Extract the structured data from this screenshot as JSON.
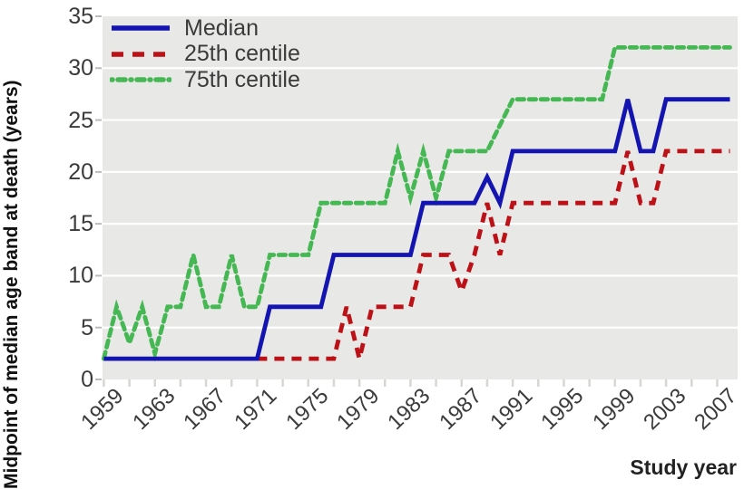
{
  "axes": {
    "y_title": "Midpoint of median age band at death (years)",
    "x_title": "Study year"
  },
  "legend": [
    {
      "label": "Median",
      "color": "#1414b0",
      "style": "solid"
    },
    {
      "label": "25th centile",
      "color": "#bb1117",
      "style": "dashed"
    },
    {
      "label": "75th centile",
      "color": "#45b854",
      "style": "dashed"
    }
  ],
  "chart_data": {
    "type": "line",
    "title": "",
    "xlabel": "Study year",
    "ylabel": "Midpoint of median age band at death (years)",
    "xlim": [
      1958.9,
      2008.6
    ],
    "ylim": [
      0,
      35
    ],
    "yticks": [
      0,
      5,
      10,
      15,
      20,
      25,
      30,
      35
    ],
    "xtick_labels": [
      1959,
      1963,
      1967,
      1971,
      1975,
      1979,
      1983,
      1987,
      1991,
      1995,
      1999,
      2003,
      2007
    ],
    "xticks_minor_step_years": 2,
    "grid": "horizontal white lines at 5-unit intervals on gray panel",
    "legend_position": "top-left inside plot",
    "panel_color": "#e8e8e6",
    "gridline_color": "#ffffff",
    "series": [
      {
        "name": "Median",
        "color": "#1414b0",
        "dash": null,
        "points": [
          [
            1959,
            2
          ],
          [
            1971,
            2
          ],
          [
            1972,
            7
          ],
          [
            1976,
            7
          ],
          [
            1977,
            12
          ],
          [
            1983,
            12
          ],
          [
            1984,
            17
          ],
          [
            1988,
            17
          ],
          [
            1989,
            19.5
          ],
          [
            1990,
            17
          ],
          [
            1991,
            22
          ],
          [
            1999,
            22
          ],
          [
            2000,
            27
          ],
          [
            2001,
            22
          ],
          [
            2002,
            22
          ],
          [
            2003,
            27
          ],
          [
            2008,
            27
          ]
        ]
      },
      {
        "name": "25th centile",
        "color": "#bb1117",
        "dash": "11 8",
        "points": [
          [
            1971,
            2
          ],
          [
            1977,
            2
          ],
          [
            1978,
            7
          ],
          [
            1979,
            2
          ],
          [
            1980,
            7
          ],
          [
            1983,
            7
          ],
          [
            1984,
            12
          ],
          [
            1986,
            12
          ],
          [
            1987,
            8.5
          ],
          [
            1988,
            12
          ],
          [
            1989,
            17
          ],
          [
            1990,
            12
          ],
          [
            1991,
            17
          ],
          [
            1999,
            17
          ],
          [
            2000,
            22
          ],
          [
            2001,
            17
          ],
          [
            2002,
            17
          ],
          [
            2003,
            22
          ],
          [
            2008,
            22
          ]
        ]
      },
      {
        "name": "75th centile",
        "color": "#45b854",
        "dash": "7.5 5.5",
        "points": [
          [
            1959,
            2
          ],
          [
            1960,
            7
          ],
          [
            1961,
            3.5
          ],
          [
            1962,
            7
          ],
          [
            1963,
            2.5
          ],
          [
            1964,
            7
          ],
          [
            1965,
            7
          ],
          [
            1966,
            12
          ],
          [
            1967,
            7
          ],
          [
            1968,
            7
          ],
          [
            1969,
            12
          ],
          [
            1970,
            7
          ],
          [
            1971,
            7
          ],
          [
            1972,
            12
          ],
          [
            1975,
            12
          ],
          [
            1976,
            17
          ],
          [
            1981,
            17
          ],
          [
            1982,
            22
          ],
          [
            1983,
            17.5
          ],
          [
            1984,
            22
          ],
          [
            1985,
            17.5
          ],
          [
            1986,
            22
          ],
          [
            1989,
            22
          ],
          [
            1990,
            24.5
          ],
          [
            1991,
            27
          ],
          [
            1998,
            27
          ],
          [
            1999,
            32
          ],
          [
            2008,
            32
          ]
        ]
      }
    ]
  }
}
